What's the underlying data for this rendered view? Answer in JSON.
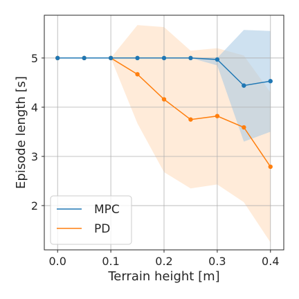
{
  "chart_data": {
    "type": "line",
    "xlabel": "Terrain height [m]",
    "ylabel": "Episode length [s]",
    "xlim": [
      -0.025,
      0.425
    ],
    "ylim": [
      1.1,
      5.87
    ],
    "x_ticks": [
      "0.0",
      "0.1",
      "0.2",
      "0.3",
      "0.4"
    ],
    "x_tick_values": [
      0.0,
      0.1,
      0.2,
      0.3,
      0.4
    ],
    "y_ticks": [
      "2",
      "3",
      "4",
      "5"
    ],
    "y_tick_values": [
      2,
      3,
      4,
      5
    ],
    "grid": true,
    "legend_position": "lower-left",
    "series": [
      {
        "name": "MPC",
        "color": "#1f77b4",
        "band_color": "#a6c8e3",
        "x": [
          0.0,
          0.05,
          0.1,
          0.15,
          0.2,
          0.25,
          0.3,
          0.35,
          0.4
        ],
        "y": [
          5.0,
          5.0,
          5.0,
          5.0,
          5.0,
          5.0,
          4.97,
          4.44,
          4.53
        ],
        "upper": [
          5.0,
          5.0,
          5.0,
          5.0,
          5.0,
          5.0,
          5.0,
          5.57,
          5.55
        ],
        "lower": [
          5.0,
          5.0,
          5.0,
          5.0,
          5.0,
          5.0,
          4.85,
          3.3,
          3.5
        ]
      },
      {
        "name": "PD",
        "color": "#ff7f0e",
        "band_color": "#ffdab9",
        "x": [
          0.0,
          0.05,
          0.1,
          0.15,
          0.2,
          0.25,
          0.3,
          0.35,
          0.4
        ],
        "y": [
          5.0,
          5.0,
          5.0,
          4.67,
          4.16,
          3.75,
          3.82,
          3.59,
          2.79
        ],
        "upper": [
          5.0,
          5.0,
          5.0,
          5.67,
          5.63,
          5.15,
          5.2,
          5.05,
          4.3
        ],
        "lower": [
          5.0,
          5.0,
          5.0,
          3.67,
          2.68,
          2.35,
          2.43,
          2.07,
          1.25
        ]
      }
    ]
  }
}
